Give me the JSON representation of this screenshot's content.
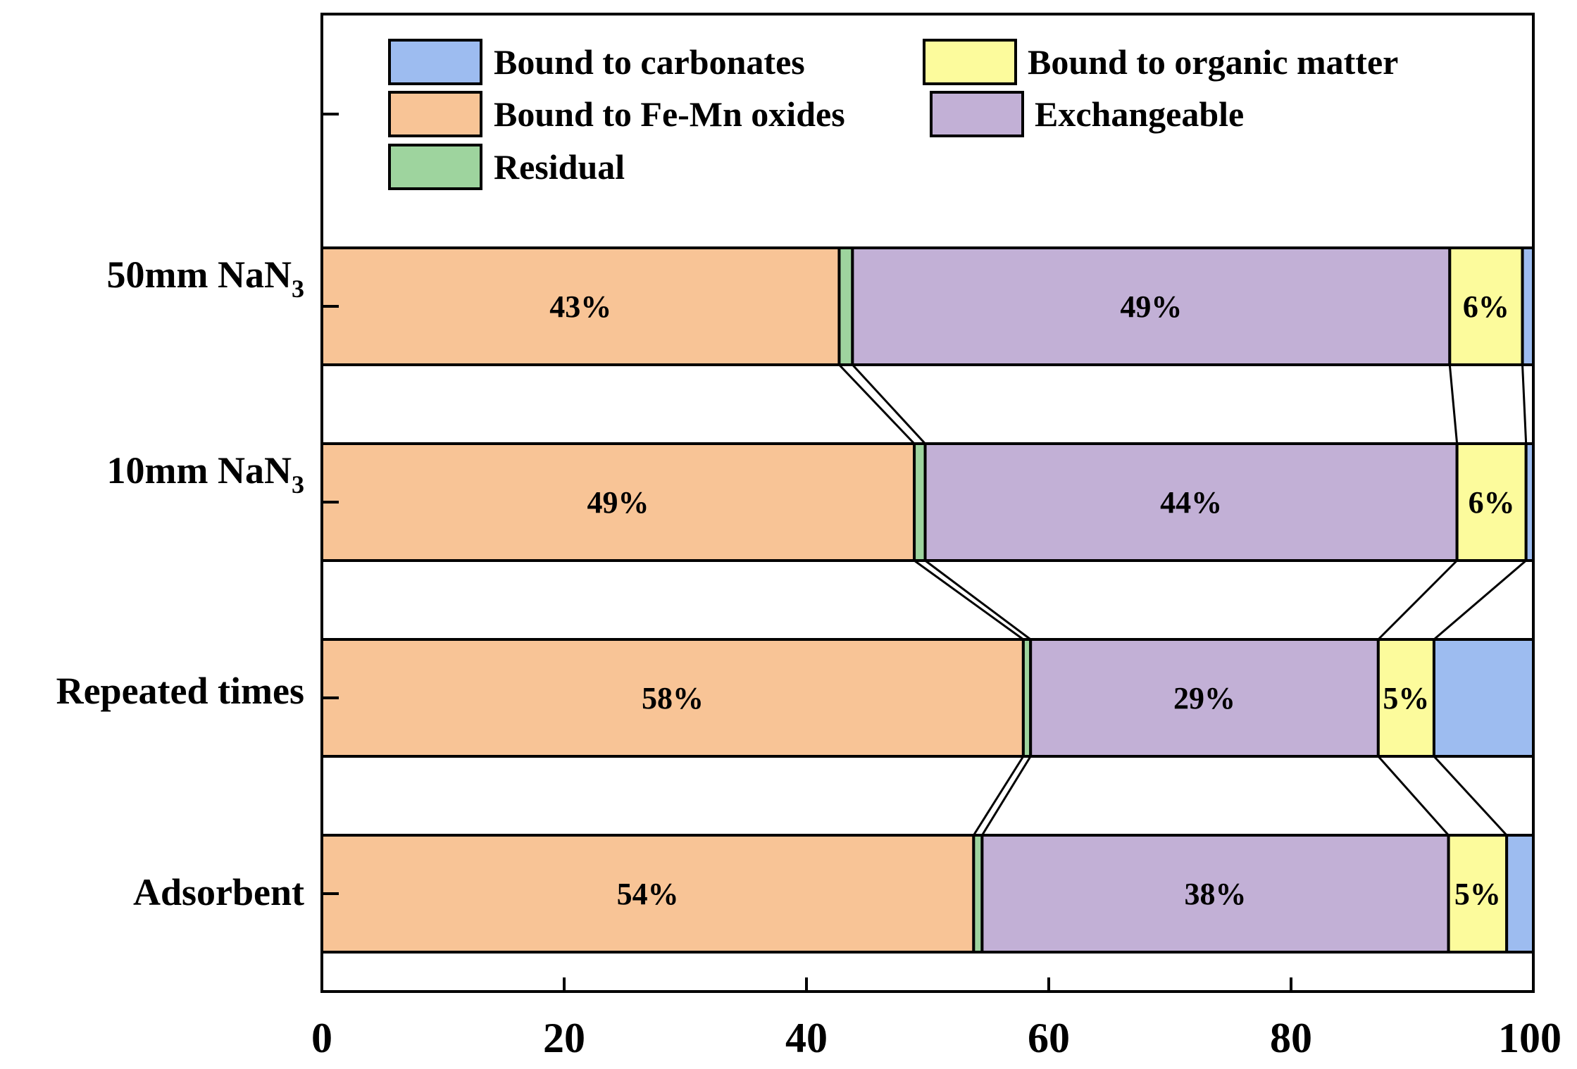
{
  "chart_data": {
    "type": "bar",
    "orientation": "horizontal",
    "stacked": true,
    "percent": true,
    "categories": [
      {
        "label": "50mm NaN",
        "subscript": "3"
      },
      {
        "label": "10mm NaN",
        "subscript": "3"
      },
      {
        "label": "Repeated times",
        "subscript": ""
      },
      {
        "label": "Adsorbent",
        "subscript": ""
      }
    ],
    "xlim": [
      0,
      100
    ],
    "xticks": [
      "0",
      "20",
      "40",
      "60",
      "80",
      "100"
    ],
    "xtick_values": [
      0,
      20,
      40,
      60,
      80,
      100
    ],
    "legend_position": "top",
    "grid": false,
    "series": [
      {
        "name": "Bound to Fe-Mn oxides",
        "color": "#f8c496",
        "values": [
          42.7,
          48.9,
          57.9,
          53.8
        ],
        "labels": [
          "43%",
          "49%",
          "58%",
          "54%"
        ]
      },
      {
        "name": "Residual",
        "color": "#9ed49e",
        "values": [
          1.1,
          0.9,
          0.6,
          0.7
        ],
        "labels": [
          "",
          "",
          "",
          ""
        ]
      },
      {
        "name": "Exchangeable",
        "color": "#c2b0d6",
        "values": [
          49.3,
          43.9,
          28.7,
          38.5
        ],
        "labels": [
          "49%",
          "44%",
          "29%",
          "38%"
        ]
      },
      {
        "name": "Bound to organic matter",
        "color": "#fcfb9c",
        "values": [
          6.0,
          5.7,
          4.6,
          4.8
        ],
        "labels": [
          "6%",
          "6%",
          "5%",
          "5%"
        ]
      },
      {
        "name": "Bound to carbonates",
        "color": "#9dbcf0",
        "values": [
          0.9,
          0.6,
          8.2,
          2.2
        ],
        "labels": [
          "",
          "",
          "",
          ""
        ]
      }
    ],
    "legend": [
      {
        "name": "Bound to carbonates",
        "color": "#9dbcf0"
      },
      {
        "name": "Bound to organic matter",
        "color": "#fcfb9c"
      },
      {
        "name": "Bound to Fe-Mn oxides",
        "color": "#f8c496"
      },
      {
        "name": "Exchangeable",
        "color": "#c2b0d6"
      },
      {
        "name": "Residual",
        "color": "#9ed49e"
      }
    ]
  }
}
